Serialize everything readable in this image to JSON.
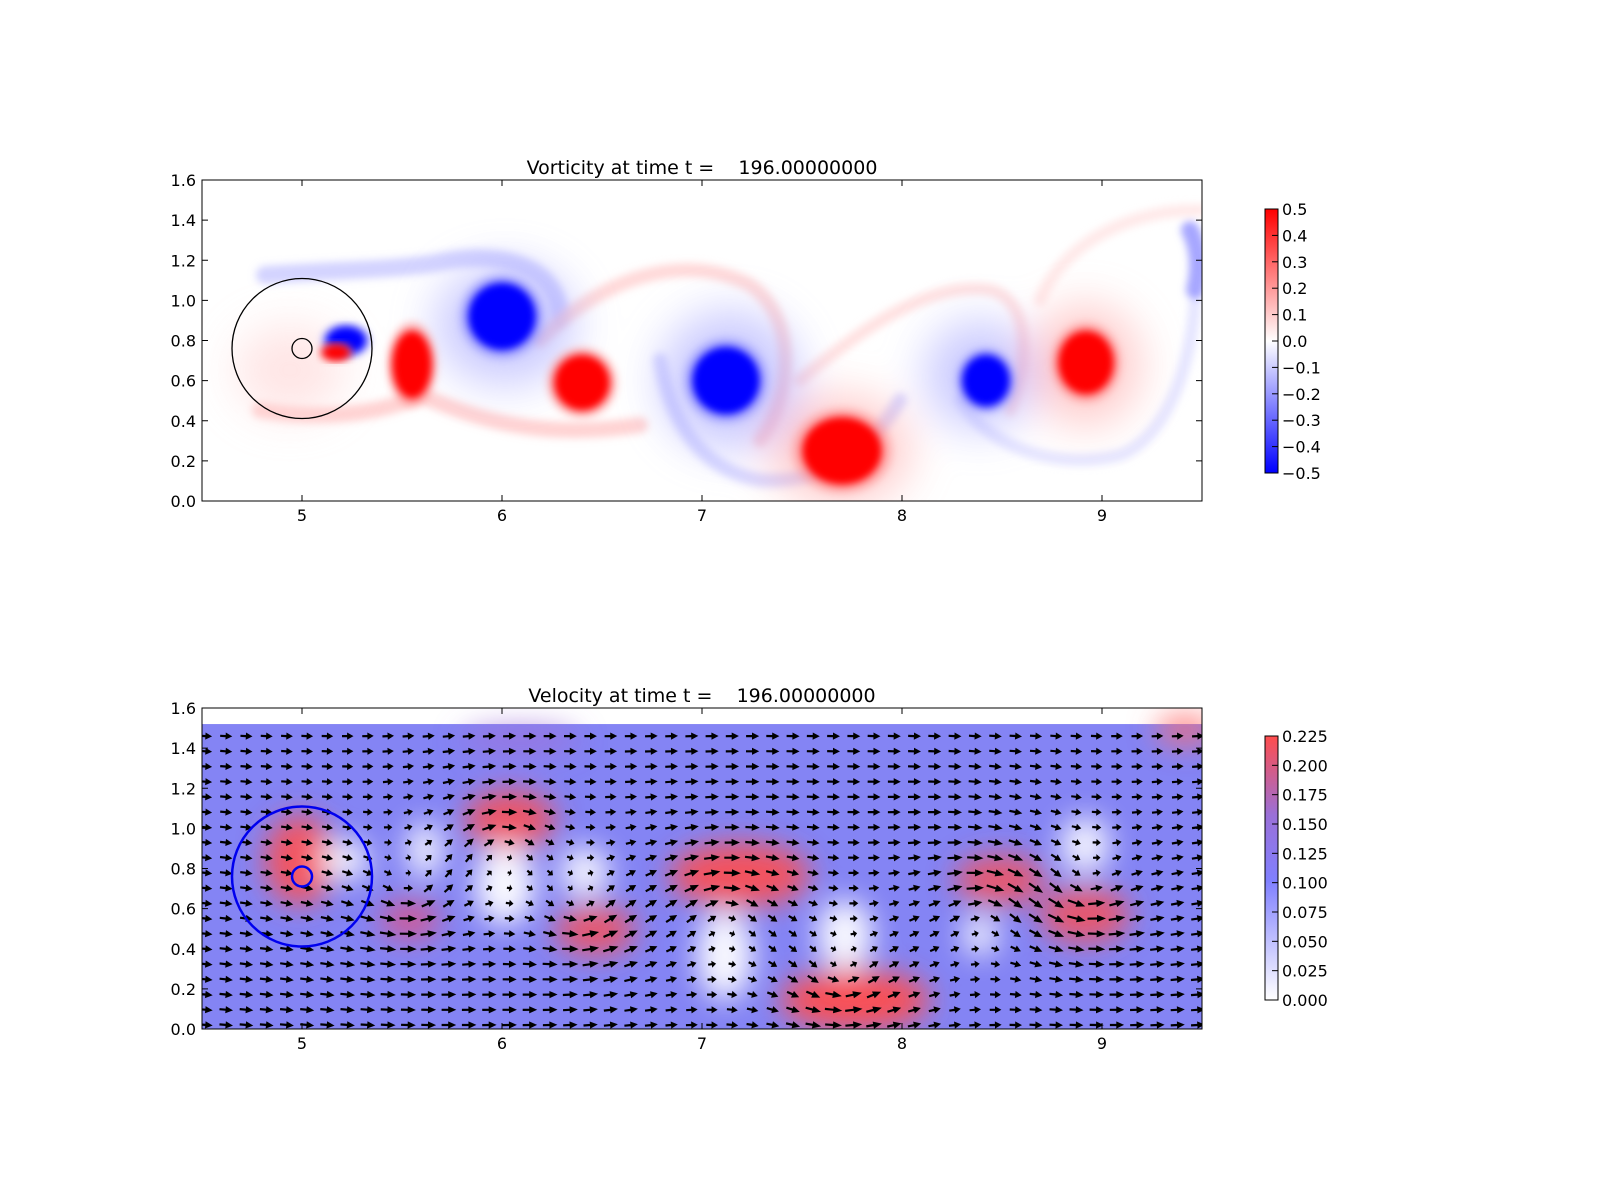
{
  "chart_data": [
    {
      "type": "heatmap",
      "title": "Vorticity at time t =    196.00000000",
      "xlim": [
        4.5,
        9.5
      ],
      "ylim": [
        0.0,
        1.6
      ],
      "xticks": [
        "5",
        "6",
        "7",
        "8",
        "9"
      ],
      "yticks": [
        "0.0",
        "0.2",
        "0.4",
        "0.6",
        "0.8",
        "1.0",
        "1.2",
        "1.4",
        "1.6"
      ],
      "grid": false,
      "colorbar": {
        "colormap": "bwr",
        "range": [
          -0.5,
          0.5
        ],
        "ticks": [
          "0.5",
          "0.4",
          "0.3",
          "0.2",
          "0.1",
          "0.0",
          "−0.1",
          "−0.2",
          "−0.3",
          "−0.4",
          "−0.5"
        ]
      },
      "circles": [
        {
          "cx": 5.0,
          "cy": 0.76,
          "r": 0.35,
          "color": "#000000"
        },
        {
          "cx": 5.0,
          "cy": 0.76,
          "r": 0.05,
          "color": "#000000"
        }
      ],
      "vortices": [
        {
          "x": 5.55,
          "y": 0.68,
          "rx": 0.1,
          "ry": 0.17,
          "value": 0.5
        },
        {
          "x": 6.0,
          "y": 0.92,
          "rx": 0.17,
          "ry": 0.17,
          "value": -0.5
        },
        {
          "x": 6.4,
          "y": 0.59,
          "rx": 0.14,
          "ry": 0.14,
          "value": 0.5
        },
        {
          "x": 7.12,
          "y": 0.6,
          "rx": 0.17,
          "ry": 0.17,
          "value": -0.5
        },
        {
          "x": 7.7,
          "y": 0.25,
          "rx": 0.2,
          "ry": 0.17,
          "value": 0.5
        },
        {
          "x": 8.42,
          "y": 0.6,
          "rx": 0.12,
          "ry": 0.13,
          "value": -0.5
        },
        {
          "x": 8.92,
          "y": 0.69,
          "rx": 0.14,
          "ry": 0.16,
          "value": 0.5
        },
        {
          "x": 5.22,
          "y": 0.8,
          "rx": 0.1,
          "ry": 0.07,
          "value": -0.5
        },
        {
          "x": 5.17,
          "y": 0.74,
          "rx": 0.07,
          "ry": 0.04,
          "value": 0.5
        }
      ]
    },
    {
      "type": "heatmap",
      "title": "Velocity at time t =    196.00000000",
      "xlim": [
        4.5,
        9.5
      ],
      "ylim": [
        0.0,
        1.6
      ],
      "xticks": [
        "5",
        "6",
        "7",
        "8",
        "9"
      ],
      "yticks": [
        "0.0",
        "0.2",
        "0.4",
        "0.6",
        "0.8",
        "1.0",
        "1.2",
        "1.4",
        "1.6"
      ],
      "grid": false,
      "colorbar": {
        "colormap": "white-blue-red",
        "range": [
          0.0,
          0.225
        ],
        "ticks": [
          "0.225",
          "0.200",
          "0.175",
          "0.150",
          "0.125",
          "0.100",
          "0.075",
          "0.050",
          "0.025",
          "0.000"
        ]
      },
      "circles": [
        {
          "cx": 5.0,
          "cy": 0.76,
          "r": 0.35,
          "color": "#0000ee"
        },
        {
          "cx": 5.0,
          "cy": 0.76,
          "r": 0.05,
          "color": "#0000ee"
        }
      ],
      "data_ymax": 1.52,
      "quiver": {
        "nx": 50,
        "ny": 20,
        "color": "#000000"
      }
    }
  ]
}
